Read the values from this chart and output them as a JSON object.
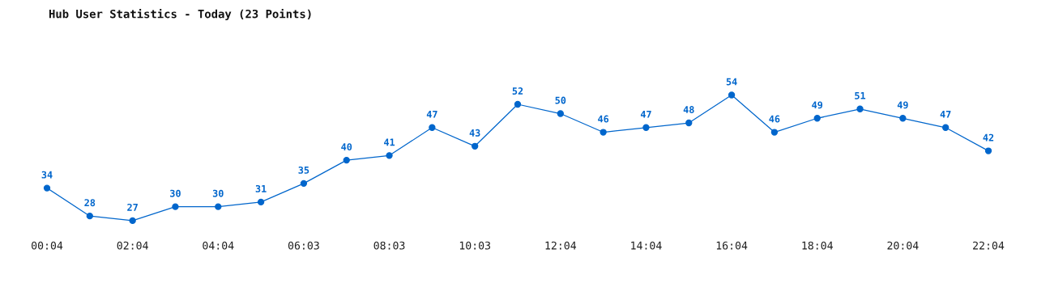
{
  "chart_data": {
    "type": "line",
    "title": "Hub User Statistics - Today (23 Points)",
    "categories": [
      "00:04",
      null,
      "02:04",
      null,
      "04:04",
      null,
      "06:03",
      null,
      "08:03",
      null,
      "10:03",
      null,
      "12:04",
      null,
      "14:04",
      null,
      "16:04",
      null,
      "18:04",
      null,
      "20:04",
      null,
      "22:04"
    ],
    "series": [
      {
        "color": "#0066cc",
        "values": [
          34,
          28,
          27,
          30,
          30,
          31,
          35,
          40,
          41,
          47,
          43,
          52,
          50,
          46,
          47,
          48,
          54,
          46,
          49,
          51,
          49,
          47,
          42
        ]
      }
    ],
    "data_labels": true,
    "marker": "circle",
    "line_style": "solid",
    "grid": false,
    "legend": false
  }
}
